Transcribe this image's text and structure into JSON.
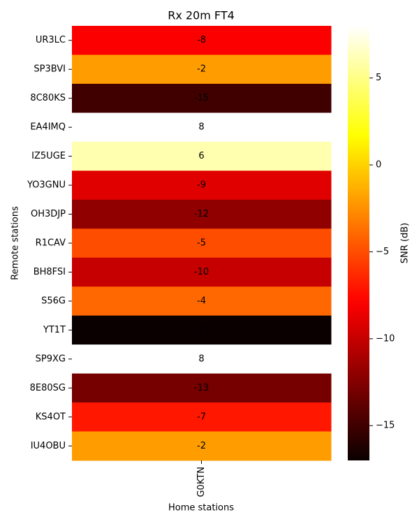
{
  "chart_data": {
    "type": "heatmap",
    "title": "Rx 20m FT4",
    "xlabel": "Home stations",
    "ylabel": "Remote stations",
    "xcategories": [
      "G0KTN"
    ],
    "categories": [
      "UR3LC",
      "SP3BVI",
      "8C80KS",
      "EA4IMQ",
      "IZ5UGE",
      "YO3GNU",
      "OH3DJP",
      "R1CAV",
      "BH8FSI",
      "S56G",
      "YT1T",
      "SP9XG",
      "8E80SG",
      "KS4OT",
      "IU4OBU"
    ],
    "values": [
      [
        -8
      ],
      [
        -2
      ],
      [
        -15
      ],
      [
        8
      ],
      [
        6
      ],
      [
        -9
      ],
      [
        -12
      ],
      [
        -5
      ],
      [
        -10
      ],
      [
        -4
      ],
      [
        -17
      ],
      [
        8
      ],
      [
        -13
      ],
      [
        -7
      ],
      [
        -2
      ]
    ],
    "colormap": "hot",
    "colorbar_label": "SNR (dB)",
    "clim": [
      -17,
      8
    ],
    "cticks": [
      {
        "value": -15,
        "label": "−15"
      },
      {
        "value": -10,
        "label": "−10"
      },
      {
        "value": -5,
        "label": "−5"
      },
      0,
      5
    ]
  }
}
